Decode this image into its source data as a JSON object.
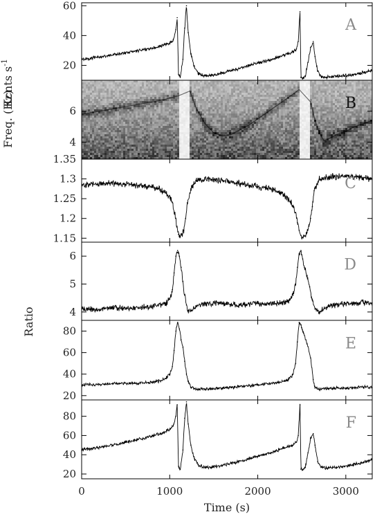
{
  "chart_data": {
    "type": "line",
    "x_axis": {
      "label": "Time (s)",
      "range": [
        0,
        3300
      ],
      "ticks": [
        0,
        1000,
        2000,
        3000
      ],
      "tick_labels": [
        "0",
        "1000",
        "2000",
        "3000"
      ]
    },
    "shared_ylabel": "Ratio",
    "panels": [
      {
        "id": "A",
        "letter": "A",
        "type": "line",
        "ylabel": "Kcnts s",
        "ylabel_sup": "-1",
        "ylim": [
          10,
          62
        ],
        "yticks": [
          20,
          40,
          60
        ],
        "ytick_labels": [
          "20",
          "40",
          "60"
        ],
        "series": [
          {
            "x": [
              0,
              100,
              200,
              300,
              400,
              500,
              600,
              700,
              800,
              900,
              1000,
              1040,
              1070,
              1085,
              1100,
              1120,
              1150,
              1170,
              1190,
              1210,
              1240,
              1280,
              1330,
              1400,
              1500,
              1600,
              1700,
              1800,
              1900,
              2000,
              2100,
              2200,
              2300,
              2400,
              2440,
              2460,
              2480,
              2490,
              2510,
              2540,
              2570,
              2600,
              2630,
              2650,
              2680,
              2720,
              2780,
              2850,
              2950,
              3050,
              3150,
              3250,
              3300
            ],
            "y": [
              24,
              24.8,
              25.5,
              26.5,
              27.5,
              28.5,
              29.5,
              30.5,
              31.5,
              33,
              35,
              37,
              44,
              52,
              14,
              12,
              24,
              45,
              60,
              42,
              28,
              19,
              14,
              13,
              13.5,
              15,
              16.5,
              18,
              20,
              21.5,
              23,
              25,
              27,
              29,
              31,
              36,
              56,
              12,
              11,
              13,
              22,
              32,
              36,
              26,
              16,
              12.5,
              12,
              12.5,
              13,
              13.5,
              14.5,
              16,
              17
            ]
          }
        ]
      },
      {
        "id": "B",
        "letter": "B",
        "type": "heatmap",
        "ylabel": "Freq. (Hz)",
        "ylim": [
          2.9,
          8.0
        ],
        "yticks": [
          4,
          6
        ],
        "ytick_labels": [
          "4",
          "6"
        ],
        "gaps": [
          [
            1110,
            1220
          ],
          [
            2470,
            2600
          ]
        ],
        "ridge": {
          "x": [
            0,
            300,
            600,
            900,
            1100,
            1230,
            1300,
            1400,
            1500,
            1600,
            1700,
            1800,
            1900,
            2000,
            2100,
            2200,
            2300,
            2400,
            2470,
            2600,
            2650,
            2700,
            2750,
            2800,
            2900,
            3000,
            3100,
            3200,
            3300
          ],
          "y": [
            5.8,
            6.1,
            6.4,
            6.7,
            7.0,
            7.3,
            6.2,
            5.2,
            4.6,
            4.4,
            4.5,
            4.8,
            5.1,
            5.5,
            5.9,
            6.3,
            6.7,
            7.1,
            7.4,
            6.6,
            5.4,
            4.6,
            4.1,
            4.2,
            4.5,
            4.7,
            5.0,
            5.2,
            5.4
          ]
        }
      },
      {
        "id": "C",
        "letter": "C",
        "type": "line",
        "ylabel": "",
        "ylim": [
          1.14,
          1.35
        ],
        "yticks": [
          1.15,
          1.2,
          1.25,
          1.3,
          1.35
        ],
        "ytick_labels": [
          "1.15",
          "1.2",
          "1.25",
          "1.3",
          "1.35"
        ],
        "series": [
          {
            "x": [
              0,
              100,
              200,
              300,
              400,
              500,
              600,
              700,
              800,
              850,
              900,
              950,
              1000,
              1030,
              1060,
              1080,
              1100,
              1120,
              1140,
              1160,
              1180,
              1200,
              1250,
              1300,
              1400,
              1500,
              1600,
              1700,
              1800,
              1900,
              2000,
              2100,
              2200,
              2250,
              2300,
              2350,
              2400,
              2430,
              2450,
              2470,
              2490,
              2510,
              2540,
              2560,
              2580,
              2600,
              2620,
              2640,
              2700,
              2800,
              2900,
              3000,
              3100,
              3200,
              3300
            ],
            "y": [
              1.285,
              1.287,
              1.288,
              1.289,
              1.288,
              1.286,
              1.284,
              1.283,
              1.28,
              1.277,
              1.272,
              1.265,
              1.255,
              1.24,
              1.21,
              1.18,
              1.16,
              1.155,
              1.158,
              1.17,
              1.2,
              1.24,
              1.28,
              1.295,
              1.3,
              1.298,
              1.295,
              1.292,
              1.288,
              1.284,
              1.28,
              1.276,
              1.27,
              1.265,
              1.258,
              1.248,
              1.232,
              1.215,
              1.19,
              1.17,
              1.157,
              1.153,
              1.156,
              1.165,
              1.18,
              1.2,
              1.23,
              1.27,
              1.3,
              1.305,
              1.307,
              1.306,
              1.305,
              1.303,
              1.3
            ]
          }
        ]
      },
      {
        "id": "D",
        "letter": "D",
        "type": "line",
        "ylabel": "",
        "ylim": [
          3.7,
          6.5
        ],
        "yticks": [
          4,
          5,
          6
        ],
        "ytick_labels": [
          "4",
          "5",
          "6"
        ],
        "series": [
          {
            "x": [
              0,
              200,
              400,
              600,
              800,
              900,
              950,
              1000,
              1030,
              1050,
              1070,
              1090,
              1110,
              1130,
              1150,
              1170,
              1190,
              1210,
              1250,
              1300,
              1400,
              1600,
              1800,
              2000,
              2200,
              2300,
              2350,
              2400,
              2430,
              2450,
              2470,
              2490,
              2510,
              2530,
              2560,
              2590,
              2620,
              2650,
              2700,
              2800,
              3000,
              3200,
              3300
            ],
            "y": [
              4.1,
              4.1,
              4.15,
              4.15,
              4.2,
              4.25,
              4.3,
              4.45,
              4.8,
              5.4,
              6.0,
              6.2,
              6.0,
              5.6,
              5.1,
              4.6,
              4.25,
              4.05,
              4.05,
              4.2,
              4.3,
              4.3,
              4.25,
              4.3,
              4.3,
              4.35,
              4.4,
              4.6,
              5.0,
              5.6,
              6.1,
              6.2,
              5.9,
              5.6,
              5.3,
              4.9,
              4.4,
              4.1,
              4.0,
              4.2,
              4.3,
              4.35,
              4.3
            ]
          }
        ]
      },
      {
        "id": "E",
        "letter": "E",
        "type": "line",
        "ylabel": "",
        "ylim": [
          16,
          90
        ],
        "yticks": [
          20,
          40,
          60,
          80
        ],
        "ytick_labels": [
          "20",
          "40",
          "60",
          "80"
        ],
        "series": [
          {
            "x": [
              0,
              200,
              400,
              600,
              800,
              900,
              950,
              1000,
              1030,
              1050,
              1070,
              1090,
              1110,
              1130,
              1150,
              1170,
              1190,
              1210,
              1240,
              1280,
              1330,
              1400,
              1600,
              1800,
              2000,
              2200,
              2300,
              2350,
              2400,
              2430,
              2450,
              2470,
              2490,
              2520,
              2560,
              2600,
              2630,
              2650,
              2700,
              2800,
              3000,
              3200,
              3300
            ],
            "y": [
              30,
              30.5,
              31,
              31.5,
              32.5,
              34,
              36,
              40,
              47,
              62,
              80,
              88,
              82,
              72,
              65,
              52,
              40,
              33,
              28,
              26.5,
              26,
              26,
              27,
              28.5,
              30,
              32,
              33.5,
              35,
              40,
              50,
              70,
              88,
              86,
              78,
              68,
              55,
              35,
              27,
              26,
              26.5,
              27,
              28,
              28
            ]
          }
        ]
      },
      {
        "id": "F",
        "letter": "F",
        "type": "line",
        "ylabel": "",
        "ylim": [
          15,
          97
        ],
        "yticks": [
          20,
          40,
          60,
          80
        ],
        "ytick_labels": [
          "20",
          "40",
          "60",
          "80"
        ],
        "series": [
          {
            "x": [
              0,
              100,
              200,
              300,
              400,
              500,
              600,
              700,
              800,
              900,
              1000,
              1040,
              1070,
              1085,
              1100,
              1120,
              1150,
              1170,
              1190,
              1210,
              1240,
              1280,
              1330,
              1400,
              1500,
              1600,
              1700,
              1800,
              1900,
              2000,
              2100,
              2200,
              2300,
              2400,
              2440,
              2460,
              2480,
              2490,
              2510,
              2540,
              2570,
              2600,
              2630,
              2650,
              2680,
              2720,
              2780,
              2850,
              2950,
              3050,
              3150,
              3250,
              3300
            ],
            "y": [
              45,
              46,
              47.5,
              49,
              51,
              53,
              55,
              57,
              59.5,
              62,
              66,
              70,
              80,
              92,
              28,
              25,
              45,
              78,
              95,
              72,
              50,
              36,
              29,
              27,
              27.5,
              29,
              31,
              33.5,
              36,
              38.5,
              41,
              44,
              47,
              50,
              53,
              60,
              92,
              25,
              24,
              27,
              42,
              57,
              62,
              50,
              33,
              27,
              26,
              26.5,
              27.5,
              29,
              31,
              33.5,
              35
            ]
          }
        ]
      }
    ]
  }
}
